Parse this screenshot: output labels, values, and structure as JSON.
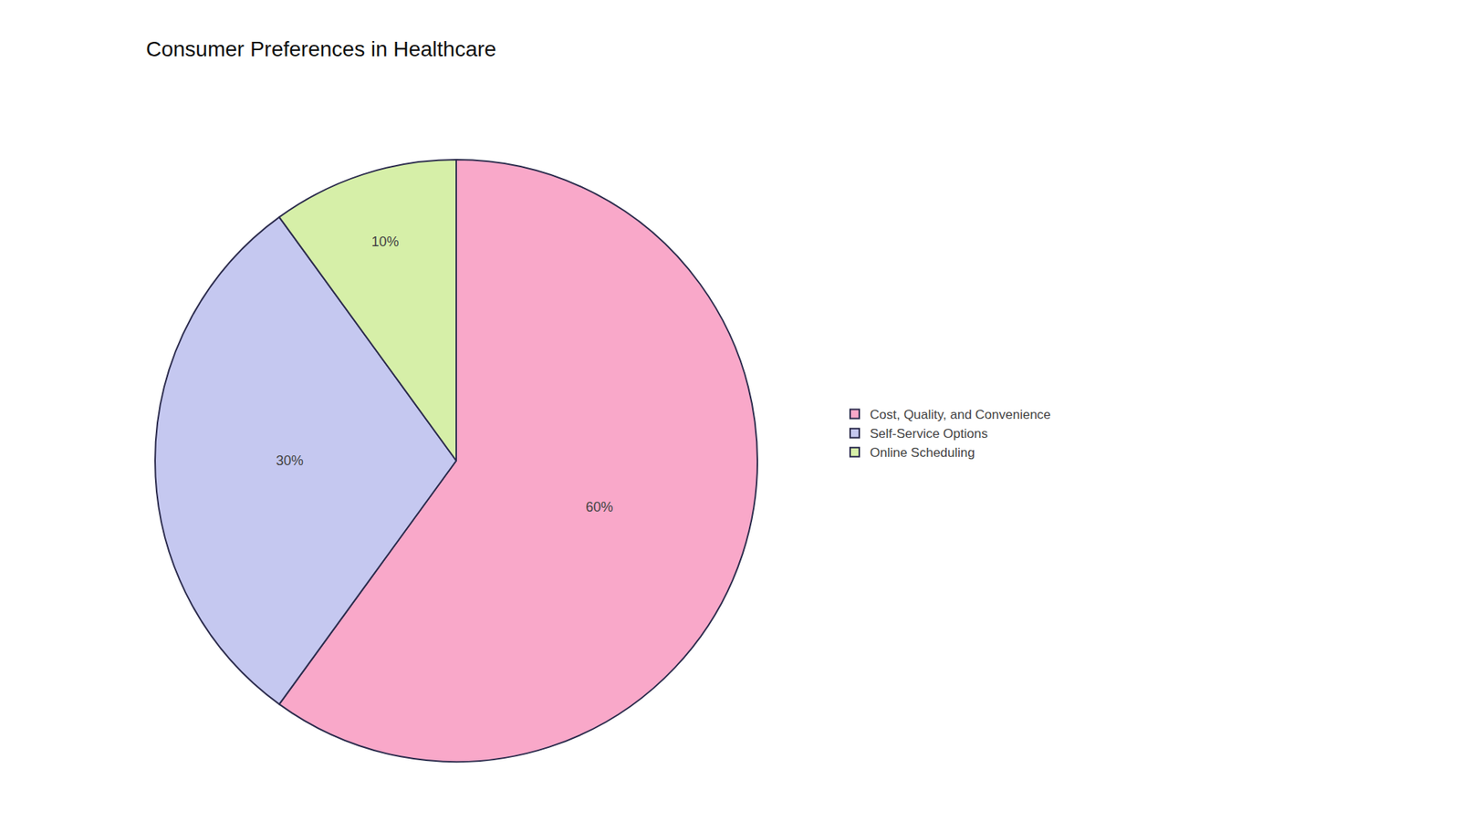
{
  "chart_data": {
    "type": "pie",
    "title": "Consumer Preferences in Healthcare",
    "categories": [
      "Cost, Quality, and Convenience",
      "Self-Service Options",
      "Online Scheduling"
    ],
    "values": [
      60,
      30,
      10
    ],
    "value_labels": [
      "60%",
      "30%",
      "10%"
    ],
    "colors": [
      "#F9A8C9",
      "#C5C8F0",
      "#D6EFA8"
    ],
    "data_labels": true,
    "legend": "right"
  }
}
